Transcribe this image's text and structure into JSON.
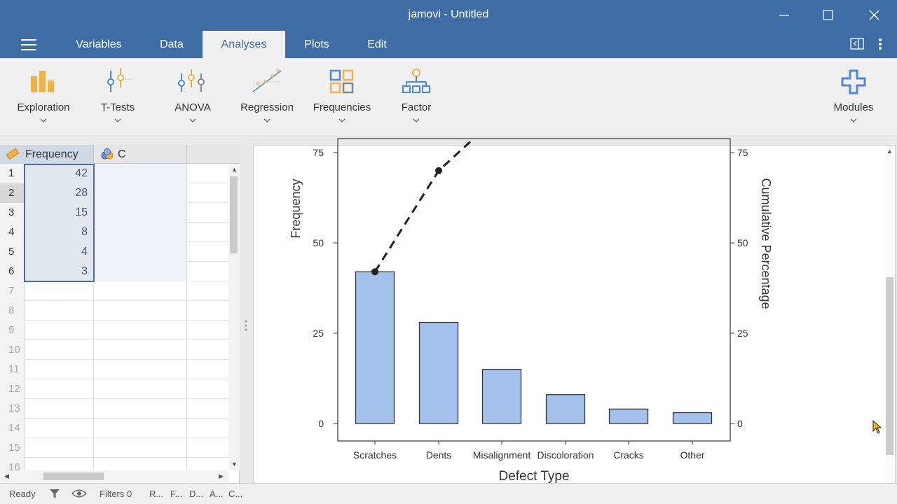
{
  "window": {
    "title": "jamovi - Untitled"
  },
  "menu": {
    "tabs": [
      {
        "label": "Variables"
      },
      {
        "label": "Data"
      },
      {
        "label": "Analyses"
      },
      {
        "label": "Plots"
      },
      {
        "label": "Edit"
      }
    ],
    "active_tab": "Analyses"
  },
  "ribbon": {
    "buttons": [
      {
        "label": "Exploration",
        "icon": "exploration-icon"
      },
      {
        "label": "T-Tests",
        "icon": "t-tests-icon"
      },
      {
        "label": "ANOVA",
        "icon": "anova-icon"
      },
      {
        "label": "Regression",
        "icon": "regression-icon"
      },
      {
        "label": "Frequencies",
        "icon": "frequencies-icon"
      },
      {
        "label": "Factor",
        "icon": "factor-icon"
      }
    ],
    "modules_label": "Modules"
  },
  "sheet": {
    "columns": [
      {
        "name": "Frequency",
        "icon": "ruler-icon"
      },
      {
        "name": "C",
        "icon": "nominal-icon"
      }
    ],
    "row_numbers": [
      "1",
      "2",
      "3",
      "4",
      "5",
      "6",
      "7",
      "8",
      "9",
      "10",
      "11",
      "12",
      "13",
      "14",
      "15",
      "16"
    ],
    "frequency_values": [
      "42",
      "28",
      "15",
      "8",
      "4",
      "3"
    ]
  },
  "status": {
    "ready": "Ready",
    "filters": "Filters 0",
    "abbrev": [
      "R...",
      "F...",
      "D...",
      "A...",
      "C..."
    ]
  },
  "colors": {
    "titlebar": "#3e6da6",
    "bar_fill": "#a4c2ed",
    "bar_stroke": "#333333",
    "ribbon_orange": "#f0b14a",
    "ribbon_blue": "#4f88d6"
  },
  "chart_data": {
    "type": "bar",
    "categories": [
      "Scratches",
      "Dents",
      "Misalignment",
      "Discoloration",
      "Cracks",
      "Other"
    ],
    "values": [
      42,
      28,
      15,
      8,
      4,
      3
    ],
    "cumulative_line": {
      "x": [
        "Scratches",
        "Dents"
      ],
      "values": [
        42,
        70
      ],
      "style": "dashed"
    },
    "xlabel": "Defect Type",
    "ylabel": "Frequency",
    "y2label": "Cumulative Percentage",
    "yticks": [
      "0",
      "25",
      "50",
      "75"
    ],
    "y2ticks": [
      "0",
      "25",
      "50",
      "75"
    ],
    "ylim": [
      0,
      75
    ]
  }
}
